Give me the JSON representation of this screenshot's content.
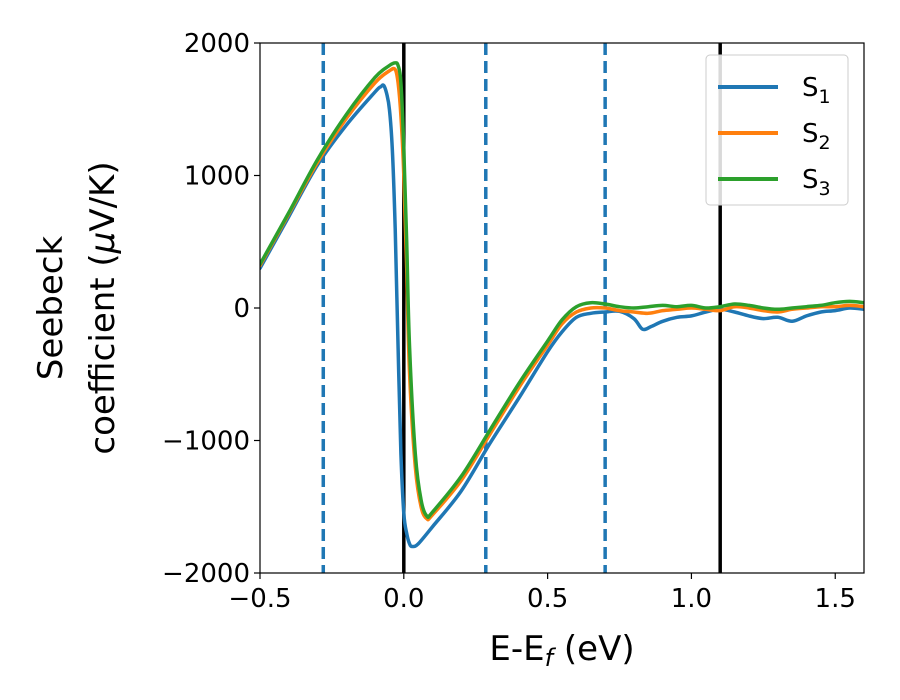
{
  "chart_data": {
    "type": "line",
    "xlabel_main": "E-E",
    "xlabel_sub": "f",
    "xlabel_unit": " (eV)",
    "ylabel_line1": "Seebeck",
    "ylabel_line2_text": "coefficient  (",
    "ylabel_line2_mu": "μ",
    "ylabel_line2_unit": "V/K)",
    "xlim": [
      -0.5,
      1.6
    ],
    "ylim": [
      -2000,
      2000
    ],
    "xticks": [
      -0.5,
      0.0,
      0.5,
      1.0,
      1.5
    ],
    "xtick_labels": [
      "−0.5",
      "0.0",
      "0.5",
      "1.0",
      "1.5"
    ],
    "yticks": [
      -2000,
      -1000,
      0,
      1000,
      2000
    ],
    "ytick_labels": [
      "−2000",
      "−1000",
      "0",
      "1000",
      "2000"
    ],
    "legend_position": "top-right",
    "vlines_dashed": [
      -0.28,
      0.285,
      0.7
    ],
    "vlines_solid": [
      0.0,
      1.1
    ],
    "vline_dashed_color": "#1f77b4",
    "vline_solid_color": "#000000",
    "series": [
      {
        "name_main": "S",
        "name_sub": "1",
        "color": "#1f77b4",
        "x": [
          -0.5,
          -0.4,
          -0.3,
          -0.2,
          -0.1,
          -0.08,
          -0.07,
          -0.06,
          -0.05,
          -0.04,
          -0.03,
          -0.02,
          -0.01,
          0.0,
          0.01,
          0.02,
          0.03,
          0.05,
          0.1,
          0.2,
          0.3,
          0.4,
          0.5,
          0.55,
          0.6,
          0.65,
          0.7,
          0.75,
          0.8,
          0.83,
          0.86,
          0.9,
          0.95,
          1.0,
          1.05,
          1.1,
          1.15,
          1.2,
          1.25,
          1.3,
          1.35,
          1.4,
          1.45,
          1.5,
          1.55,
          1.6
        ],
        "y": [
          300,
          690,
          1080,
          1380,
          1630,
          1670,
          1680,
          1620,
          1500,
          1200,
          600,
          -300,
          -1100,
          -1550,
          -1700,
          -1780,
          -1800,
          -1780,
          -1650,
          -1380,
          -1020,
          -680,
          -330,
          -180,
          -70,
          -40,
          -30,
          -25,
          -80,
          -160,
          -140,
          -100,
          -70,
          -60,
          -30,
          -10,
          -30,
          -60,
          -80,
          -70,
          -100,
          -60,
          -30,
          -20,
          0,
          -10
        ]
      },
      {
        "name_main": "S",
        "name_sub": "2",
        "color": "#ff7f0e",
        "x": [
          -0.5,
          -0.4,
          -0.3,
          -0.2,
          -0.1,
          -0.05,
          -0.03,
          -0.02,
          -0.01,
          0.0,
          0.01,
          0.02,
          0.04,
          0.06,
          0.08,
          0.1,
          0.2,
          0.3,
          0.4,
          0.5,
          0.55,
          0.6,
          0.65,
          0.7,
          0.75,
          0.8,
          0.85,
          0.9,
          0.95,
          1.0,
          1.05,
          1.1,
          1.15,
          1.2,
          1.25,
          1.3,
          1.35,
          1.4,
          1.45,
          1.5,
          1.55,
          1.6
        ],
        "y": [
          320,
          710,
          1100,
          1430,
          1700,
          1790,
          1800,
          1700,
          1450,
          1000,
          300,
          -500,
          -1200,
          -1500,
          -1590,
          -1560,
          -1300,
          -950,
          -600,
          -280,
          -120,
          -30,
          0,
          0,
          -20,
          -30,
          -40,
          -20,
          -10,
          0,
          -10,
          -20,
          10,
          0,
          -20,
          -30,
          -10,
          0,
          10,
          10,
          20,
          10
        ]
      },
      {
        "name_main": "S",
        "name_sub": "3",
        "color": "#2ca02c",
        "x": [
          -0.5,
          -0.4,
          -0.3,
          -0.2,
          -0.1,
          -0.05,
          -0.03,
          -0.02,
          -0.01,
          0.0,
          0.01,
          0.02,
          0.04,
          0.06,
          0.08,
          0.1,
          0.2,
          0.3,
          0.4,
          0.5,
          0.55,
          0.6,
          0.65,
          0.7,
          0.75,
          0.8,
          0.85,
          0.9,
          0.95,
          1.0,
          1.05,
          1.1,
          1.15,
          1.2,
          1.25,
          1.3,
          1.35,
          1.4,
          1.45,
          1.5,
          1.55,
          1.6
        ],
        "y": [
          330,
          720,
          1120,
          1460,
          1740,
          1830,
          1850,
          1830,
          1700,
          1200,
          500,
          -300,
          -1100,
          -1450,
          -1570,
          -1540,
          -1270,
          -920,
          -570,
          -250,
          -90,
          10,
          40,
          30,
          10,
          0,
          10,
          20,
          10,
          20,
          0,
          10,
          30,
          20,
          0,
          -10,
          0,
          10,
          20,
          40,
          50,
          40
        ]
      }
    ]
  }
}
